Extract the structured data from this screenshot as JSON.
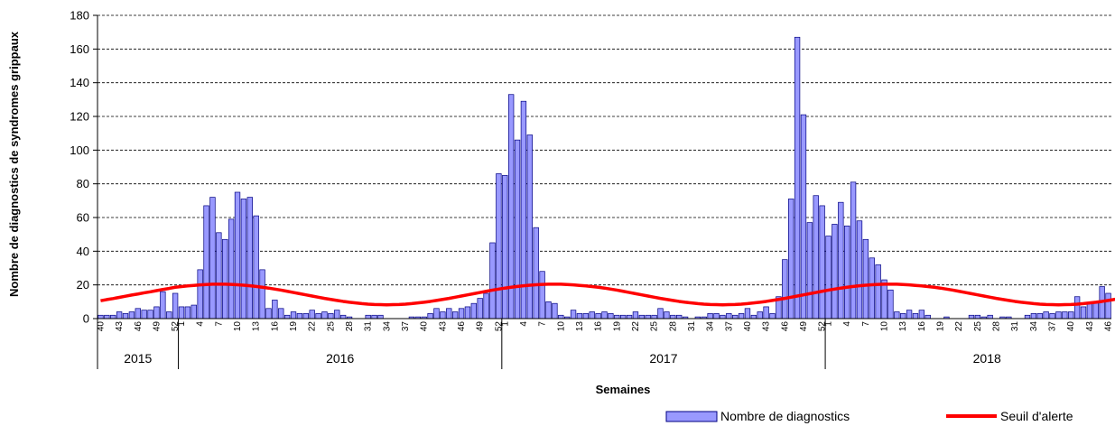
{
  "chart_data": {
    "type": "bar",
    "title": "",
    "xlabel": "Semaines",
    "ylabel": "Nombre de diagnostics de syndromes grippaux",
    "ylim": [
      0,
      180
    ],
    "yticks": [
      0,
      20,
      40,
      60,
      80,
      100,
      120,
      140,
      160,
      180
    ],
    "grid": "horizontal dashed",
    "legend_position": "bottom-right",
    "colors": {
      "bars": "#9999ff",
      "bar_outline": "#000080",
      "threshold": "#ff0000"
    },
    "years": [
      {
        "label": "2015",
        "start_week": 40,
        "weeks": 13
      },
      {
        "label": "2016",
        "start_week": 1,
        "weeks": 52
      },
      {
        "label": "2017",
        "start_week": 1,
        "weeks": 52
      },
      {
        "label": "2018",
        "start_week": 1,
        "weeks": 52
      }
    ],
    "week_tick_step": 3,
    "series": [
      {
        "name": "Nombre de diagnostics",
        "type": "bar",
        "values": [
          2,
          2,
          2,
          4,
          3,
          4,
          6,
          5,
          5,
          7,
          16,
          4,
          15,
          7,
          7,
          8,
          29,
          67,
          72,
          51,
          47,
          59,
          75,
          71,
          72,
          61,
          29,
          6,
          11,
          6,
          2,
          4,
          3,
          3,
          5,
          3,
          4,
          3,
          5,
          2,
          1,
          0,
          0,
          2,
          2,
          2,
          0,
          0,
          0,
          0,
          1,
          1,
          1,
          3,
          6,
          4,
          6,
          4,
          6,
          7,
          9,
          12,
          15,
          45,
          86,
          85,
          133,
          106,
          129,
          109,
          54,
          28,
          10,
          9,
          2,
          1,
          5,
          3,
          3,
          4,
          3,
          4,
          3,
          2,
          2,
          2,
          4,
          2,
          2,
          2,
          6,
          4,
          2,
          2,
          1,
          0,
          1,
          1,
          3,
          3,
          2,
          3,
          2,
          3,
          6,
          2,
          4,
          7,
          3,
          13,
          35,
          71,
          167,
          121,
          57,
          73,
          67,
          49,
          56,
          69,
          55,
          81,
          58,
          47,
          36,
          32,
          23,
          17,
          4,
          3,
          5,
          3,
          5,
          2,
          0,
          0,
          1,
          0,
          0,
          0,
          2,
          2,
          1,
          2,
          0,
          1,
          1,
          0,
          0,
          2,
          3,
          3,
          4,
          3,
          4,
          4,
          4,
          13,
          7,
          9,
          10,
          19,
          15
        ]
      },
      {
        "name": "Seuil d'alerte",
        "type": "line",
        "values": [
          10.6,
          11.3,
          11.9,
          12.6,
          13.3,
          14.0,
          14.6,
          15.3,
          15.9,
          16.6,
          17.3,
          17.9,
          18.6,
          19.0,
          19.4,
          19.7,
          20.0,
          20.2,
          20.4,
          20.4,
          20.4,
          20.3,
          20.1,
          19.8,
          19.5,
          19.1,
          18.6,
          18.1,
          17.5,
          16.9,
          16.2,
          15.5,
          14.8,
          14.1,
          13.4,
          12.7,
          12.0,
          11.4,
          10.8,
          10.2,
          9.7,
          9.3,
          8.9,
          8.6,
          8.4,
          8.3,
          8.2,
          8.3,
          8.4,
          8.6,
          8.9,
          9.3,
          9.7,
          10.2,
          10.8,
          11.4,
          12.0,
          12.7,
          13.4,
          14.1,
          14.8,
          15.5,
          16.2,
          16.9,
          17.5,
          18.1,
          18.6,
          19.1,
          19.5,
          19.8,
          20.1,
          20.3,
          20.4,
          20.4,
          20.4,
          20.2,
          20.0,
          19.7,
          19.4,
          19.0,
          18.6,
          18.1,
          17.5,
          16.9,
          16.2,
          15.5,
          14.8,
          14.1,
          13.4,
          12.7,
          12.0,
          11.4,
          10.8,
          10.2,
          9.7,
          9.3,
          8.9,
          8.6,
          8.4,
          8.3,
          8.2,
          8.3,
          8.4,
          8.6,
          8.9,
          9.3,
          9.7,
          10.2,
          10.8,
          11.4,
          12.0,
          12.7,
          13.4,
          14.1,
          14.8,
          15.5,
          16.2,
          16.9,
          17.5,
          18.1,
          18.6,
          19.1,
          19.5,
          19.8,
          20.1,
          20.3,
          20.4,
          20.4,
          20.4,
          20.2,
          20.0,
          19.7,
          19.4,
          19.0,
          18.6,
          18.1,
          17.5,
          16.9,
          16.2,
          15.5,
          14.8,
          14.1,
          13.4,
          12.7,
          12.0,
          11.4,
          10.8,
          10.2,
          9.7,
          9.3,
          8.9,
          8.6,
          8.4,
          8.3,
          8.2,
          8.3,
          8.4,
          8.6,
          8.9,
          9.3,
          9.7,
          10.2,
          10.8,
          11.4,
          12.0,
          12.7,
          13.4,
          14.1,
          14.8,
          15.5,
          16.2,
          16.9,
          17.5,
          18.1,
          18.6,
          19.1,
          19.5,
          19.8,
          20.1,
          20.3,
          20.4,
          20.4,
          20.4,
          20.2,
          20.0,
          19.7,
          19.4,
          19.0,
          18.6,
          18.1,
          17.5,
          16.9,
          16.2,
          15.5,
          14.8,
          14.1,
          13.4,
          12.7,
          12.0,
          11.4,
          10.8,
          10.2,
          9.7,
          9.3,
          8.9,
          8.6,
          8.4,
          8.3,
          8.2,
          8.3,
          8.4,
          8.6,
          8.9,
          9.3,
          9.7,
          10.2,
          10.8,
          11.4,
          12.0,
          12.7,
          13.4,
          14.1,
          14.8,
          15.5,
          16.2,
          16.9,
          17.5,
          18.1,
          18.6,
          19.1,
          19.5,
          19.8,
          20.1,
          20.3,
          20.4,
          20.4,
          20.4,
          20.2,
          20.0,
          19.7,
          19.4,
          19.0,
          18.6,
          18.1,
          17.5,
          16.9,
          16.2,
          15.5,
          14.8,
          14.1,
          13.4,
          12.7,
          12.0,
          11.4,
          10.8,
          10.2,
          9.7,
          9.3,
          8.9,
          8.6,
          8.4,
          8.3,
          8.2,
          8.3,
          8.4,
          8.6,
          8.9,
          9.3
        ]
      }
    ]
  }
}
